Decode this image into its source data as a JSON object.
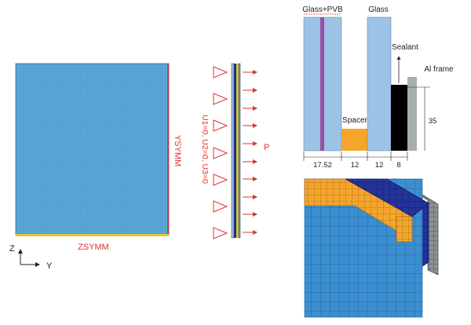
{
  "front_view": {
    "label_right": "YSYMM",
    "label_bottom": "ZSYMM",
    "axis_vertical": "Z",
    "axis_horizontal": "Y"
  },
  "side_view": {
    "boundary_condition": "U1=0, U2=0, U3=0",
    "pressure_label": "P"
  },
  "section": {
    "label_glass_pvb": "Glass+PVB",
    "label_glass": "Glass",
    "label_sealant": "Sealant",
    "label_al_frame": "Al frame",
    "label_spacer": "Spacer",
    "dim_height": "35",
    "dims": [
      "17.52",
      "12",
      "12",
      "8"
    ]
  },
  "colors": {
    "mesh_blue": "#58a8d8",
    "mesh_line": "#3d84b8",
    "pvb": "#9b4fa8",
    "glass": "#9cc2e6",
    "spacer": "#f4a52a",
    "sealant": "#000000",
    "frame": "#a8aeb0",
    "label_red": "#e0332f",
    "navy": "#1f2f8c"
  }
}
